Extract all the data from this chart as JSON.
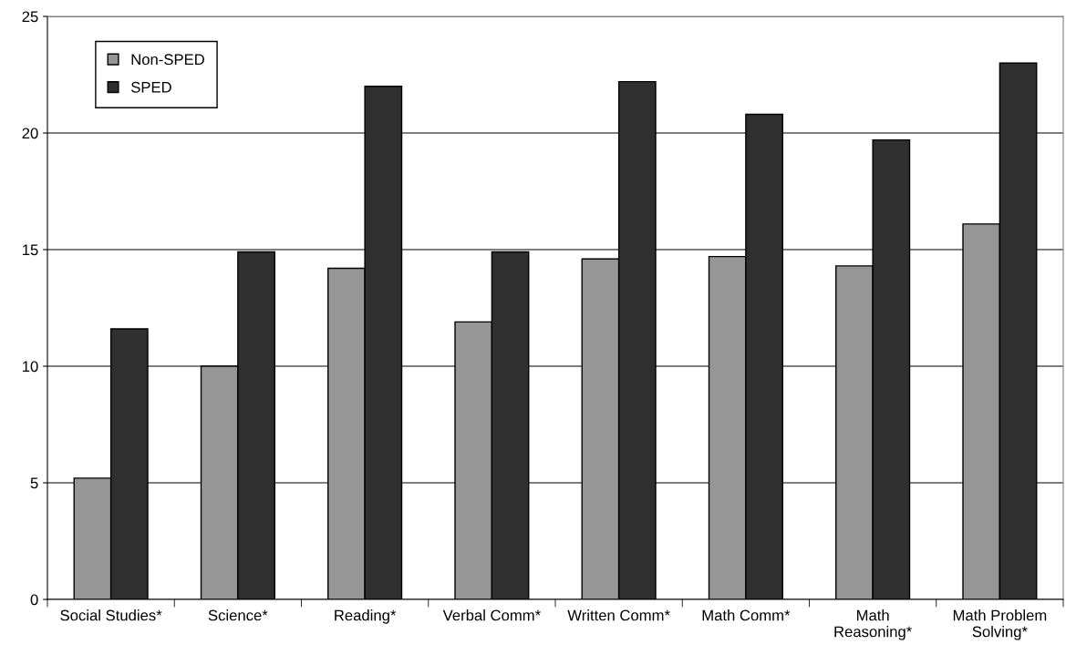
{
  "chart_data": {
    "type": "bar",
    "categories": [
      "Social Studies*",
      "Science*",
      "Reading*",
      "Verbal Comm*",
      "Written Comm*",
      "Math Comm*",
      "Math\nReasoning*",
      "Math Problem\nSolving*"
    ],
    "series": [
      {
        "name": "Non-SPED",
        "color": "#969696",
        "values": [
          5.2,
          10.0,
          14.2,
          11.9,
          14.6,
          14.7,
          14.3,
          16.1
        ]
      },
      {
        "name": "SPED",
        "color": "#2f2f2f",
        "values": [
          11.6,
          14.9,
          22.0,
          14.9,
          22.2,
          20.8,
          19.7,
          23.0
        ]
      }
    ],
    "ylim": [
      0,
      25
    ],
    "yticks": [
      0,
      5,
      10,
      15,
      20,
      25
    ],
    "grid": "y",
    "legend": "top left"
  }
}
